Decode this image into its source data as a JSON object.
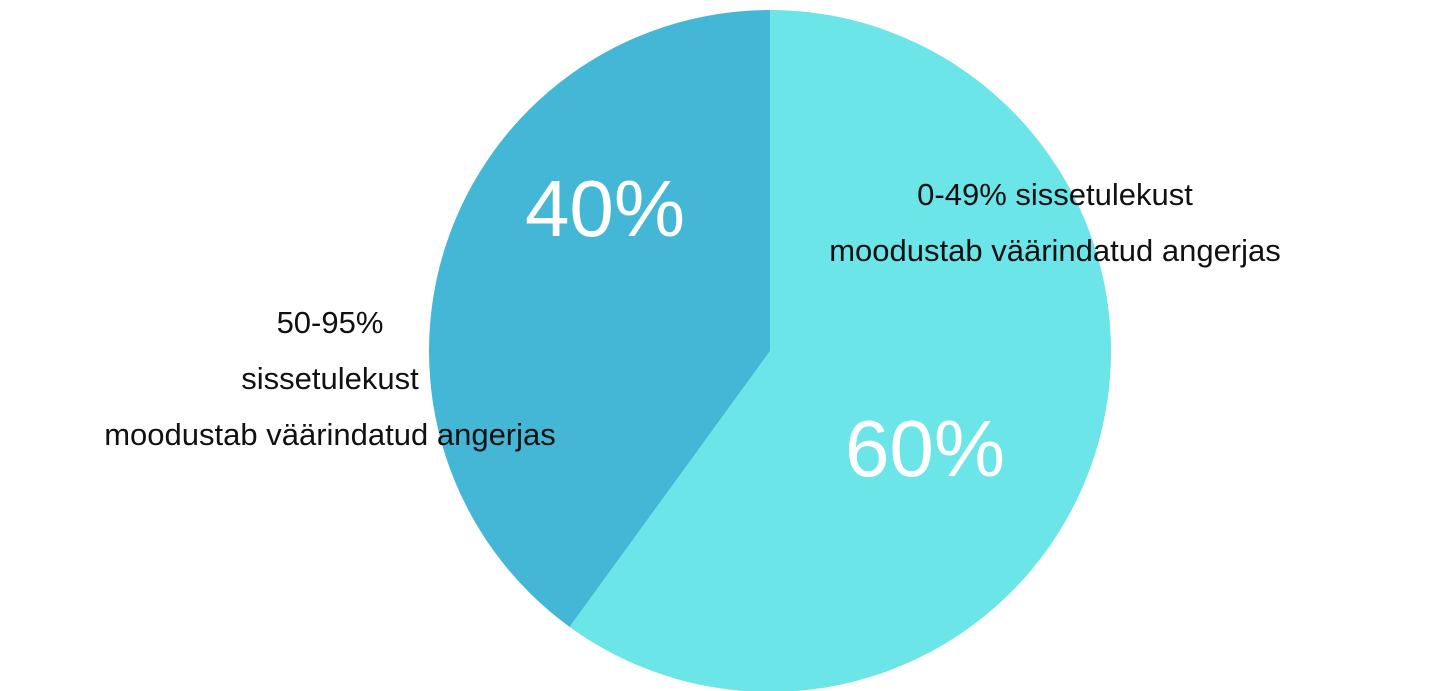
{
  "chart_data": {
    "type": "pie",
    "categories": [
      "0-49% sissetulekust\nmoodustab väärindatud angerjas",
      "50-95%\nsissetulekust\nmoodustab väärindatud angerjas"
    ],
    "values": [
      60,
      40
    ],
    "value_labels": [
      "60%",
      "40%"
    ],
    "colors": [
      "#6ce5e8",
      "#43b7d5"
    ]
  }
}
